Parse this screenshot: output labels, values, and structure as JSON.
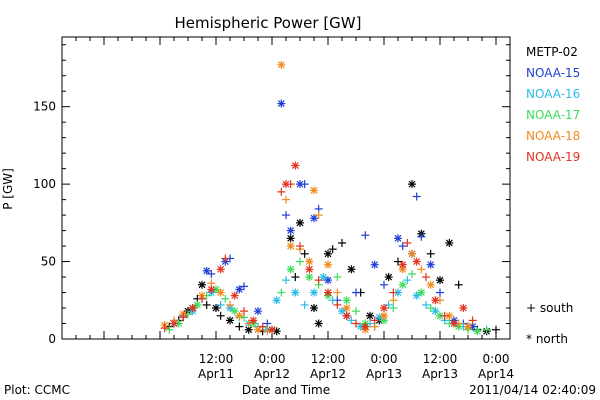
{
  "chart_data": {
    "type": "scatter",
    "title": "Hemispheric Power [GW]",
    "xlabel": "Date and Time",
    "ylabel": "P [GW]",
    "xlim": [
      -21,
      75
    ],
    "ylim": [
      0,
      195
    ],
    "x_unit": "hours from 0:00 Apr11",
    "y_ticks": [
      0,
      50,
      100,
      150
    ],
    "x_ticks": [
      {
        "x": 12,
        "time": "12:00",
        "date": "Apr11"
      },
      {
        "x": 24,
        "time": "0:00",
        "date": "Apr12"
      },
      {
        "x": 36,
        "time": "12:00",
        "date": "Apr12"
      },
      {
        "x": 48,
        "time": "0:00",
        "date": "Apr13"
      },
      {
        "x": 60,
        "time": "12:00",
        "date": "Apr13"
      },
      {
        "x": 72,
        "time": "0:00",
        "date": "Apr14"
      }
    ],
    "grid": false,
    "legend_position": "right",
    "marker_legend": [
      {
        "symbol": "+",
        "label": "south"
      },
      {
        "symbol": "*",
        "label": "north"
      }
    ],
    "series": [
      {
        "name": "METP-02",
        "color": "#000000",
        "points": [
          [
            2,
            8,
            "+"
          ],
          [
            4,
            12,
            "+"
          ],
          [
            6,
            18,
            "*"
          ],
          [
            8,
            26,
            "+"
          ],
          [
            9,
            35,
            "*"
          ],
          [
            10,
            22,
            "+"
          ],
          [
            12,
            20,
            "*"
          ],
          [
            13,
            15,
            "+"
          ],
          [
            15,
            12,
            "*"
          ],
          [
            17,
            8,
            "+"
          ],
          [
            19,
            6,
            "*"
          ],
          [
            22,
            5,
            "+"
          ],
          [
            25,
            5,
            "*"
          ],
          [
            28,
            65,
            "*"
          ],
          [
            29,
            40,
            "+"
          ],
          [
            30,
            75,
            "*"
          ],
          [
            31,
            55,
            "+"
          ],
          [
            33,
            20,
            "*"
          ],
          [
            34,
            10,
            "*"
          ],
          [
            36,
            55,
            "*"
          ],
          [
            37,
            58,
            "+"
          ],
          [
            39,
            62,
            "+"
          ],
          [
            41,
            45,
            "*"
          ],
          [
            43,
            30,
            "+"
          ],
          [
            45,
            15,
            "*"
          ],
          [
            47,
            12,
            "*"
          ],
          [
            49,
            40,
            "*"
          ],
          [
            51,
            50,
            "+"
          ],
          [
            54,
            100,
            "*"
          ],
          [
            56,
            68,
            "*"
          ],
          [
            58,
            55,
            "+"
          ],
          [
            60,
            38,
            "*"
          ],
          [
            62,
            62,
            "*"
          ],
          [
            64,
            35,
            "+"
          ],
          [
            66,
            8,
            "*"
          ],
          [
            68,
            6,
            "+"
          ],
          [
            70,
            5,
            "*"
          ],
          [
            72,
            6,
            "+"
          ]
        ]
      },
      {
        "name": "NOAA-15",
        "color": "#1f3fd6",
        "points": [
          [
            5,
            15,
            "+"
          ],
          [
            7,
            20,
            "*"
          ],
          [
            10,
            44,
            "*"
          ],
          [
            11,
            42,
            "+"
          ],
          [
            14,
            50,
            "*"
          ],
          [
            15,
            52,
            "+"
          ],
          [
            17,
            32,
            "*"
          ],
          [
            18,
            34,
            "+"
          ],
          [
            21,
            18,
            "*"
          ],
          [
            23,
            10,
            "+"
          ],
          [
            26,
            152,
            "*"
          ],
          [
            27,
            80,
            "+"
          ],
          [
            28,
            70,
            "*"
          ],
          [
            30,
            100,
            "*"
          ],
          [
            31,
            100,
            "+"
          ],
          [
            33,
            78,
            "*"
          ],
          [
            34,
            84,
            "+"
          ],
          [
            36,
            38,
            "*"
          ],
          [
            38,
            25,
            "+"
          ],
          [
            40,
            15,
            "*"
          ],
          [
            42,
            30,
            "+"
          ],
          [
            44,
            67,
            "+"
          ],
          [
            46,
            48,
            "*"
          ],
          [
            48,
            35,
            "+"
          ],
          [
            51,
            65,
            "*"
          ],
          [
            52,
            60,
            "+"
          ],
          [
            54,
            55,
            "*"
          ],
          [
            55,
            92,
            "+"
          ],
          [
            56,
            66,
            "+"
          ],
          [
            58,
            48,
            "*"
          ],
          [
            60,
            30,
            "+"
          ],
          [
            63,
            12,
            "*"
          ],
          [
            65,
            10,
            "+"
          ],
          [
            67,
            8,
            "*"
          ]
        ]
      },
      {
        "name": "NOAA-16",
        "color": "#29bde8",
        "points": [
          [
            3,
            10,
            "*"
          ],
          [
            5,
            14,
            "+"
          ],
          [
            7,
            18,
            "*"
          ],
          [
            9,
            26,
            "+"
          ],
          [
            11,
            30,
            "*"
          ],
          [
            13,
            22,
            "+"
          ],
          [
            15,
            20,
            "*"
          ],
          [
            17,
            14,
            "+"
          ],
          [
            19,
            10,
            "*"
          ],
          [
            21,
            8,
            "+"
          ],
          [
            23,
            6,
            "*"
          ],
          [
            25,
            25,
            "*"
          ],
          [
            27,
            38,
            "+"
          ],
          [
            29,
            30,
            "*"
          ],
          [
            31,
            22,
            "+"
          ],
          [
            33,
            30,
            "*"
          ],
          [
            35,
            40,
            "*"
          ],
          [
            37,
            25,
            "+"
          ],
          [
            39,
            18,
            "*"
          ],
          [
            41,
            12,
            "+"
          ],
          [
            43,
            8,
            "*"
          ],
          [
            45,
            10,
            "+"
          ],
          [
            47,
            14,
            "*"
          ],
          [
            49,
            22,
            "+"
          ],
          [
            51,
            30,
            "*"
          ],
          [
            53,
            38,
            "+"
          ],
          [
            55,
            28,
            "*"
          ],
          [
            57,
            22,
            "+"
          ],
          [
            59,
            18,
            "*"
          ],
          [
            61,
            12,
            "+"
          ],
          [
            63,
            10,
            "*"
          ],
          [
            65,
            8,
            "+"
          ]
        ]
      },
      {
        "name": "NOAA-17",
        "color": "#3ddc5c",
        "points": [
          [
            2,
            6,
            "+"
          ],
          [
            4,
            10,
            "*"
          ],
          [
            6,
            16,
            "+"
          ],
          [
            8,
            22,
            "*"
          ],
          [
            10,
            28,
            "+"
          ],
          [
            12,
            32,
            "*"
          ],
          [
            14,
            26,
            "+"
          ],
          [
            16,
            18,
            "*"
          ],
          [
            18,
            14,
            "+"
          ],
          [
            20,
            10,
            "*"
          ],
          [
            22,
            8,
            "+"
          ],
          [
            24,
            6,
            "*"
          ],
          [
            26,
            30,
            "+"
          ],
          [
            28,
            45,
            "*"
          ],
          [
            30,
            50,
            "+"
          ],
          [
            32,
            40,
            "*"
          ],
          [
            34,
            35,
            "+"
          ],
          [
            36,
            28,
            "*"
          ],
          [
            38,
            40,
            "+"
          ],
          [
            40,
            25,
            "*"
          ],
          [
            42,
            18,
            "+"
          ],
          [
            44,
            10,
            "*"
          ],
          [
            46,
            8,
            "+"
          ],
          [
            48,
            12,
            "*"
          ],
          [
            50,
            20,
            "+"
          ],
          [
            52,
            35,
            "*"
          ],
          [
            54,
            42,
            "+"
          ],
          [
            56,
            30,
            "*"
          ],
          [
            58,
            20,
            "+"
          ],
          [
            60,
            15,
            "*"
          ],
          [
            62,
            10,
            "+"
          ],
          [
            64,
            8,
            "*"
          ],
          [
            66,
            6,
            "+"
          ],
          [
            68,
            5,
            "*"
          ],
          [
            70,
            6,
            "+"
          ]
        ]
      },
      {
        "name": "NOAA-18",
        "color": "#f08a1c",
        "points": [
          [
            1,
            9,
            "*"
          ],
          [
            3,
            12,
            "+"
          ],
          [
            5,
            16,
            "*"
          ],
          [
            7,
            20,
            "+"
          ],
          [
            9,
            28,
            "*"
          ],
          [
            11,
            36,
            "+"
          ],
          [
            13,
            30,
            "*"
          ],
          [
            15,
            22,
            "+"
          ],
          [
            17,
            15,
            "*"
          ],
          [
            19,
            10,
            "+"
          ],
          [
            21,
            6,
            "*"
          ],
          [
            23,
            5,
            "+"
          ],
          [
            26,
            177,
            "*"
          ],
          [
            27,
            90,
            "+"
          ],
          [
            28,
            60,
            "*"
          ],
          [
            30,
            58,
            "+"
          ],
          [
            32,
            50,
            "*"
          ],
          [
            33,
            96,
            "*"
          ],
          [
            34,
            80,
            "+"
          ],
          [
            36,
            48,
            "*"
          ],
          [
            38,
            30,
            "+"
          ],
          [
            40,
            20,
            "*"
          ],
          [
            42,
            10,
            "+"
          ],
          [
            44,
            6,
            "*"
          ],
          [
            46,
            8,
            "+"
          ],
          [
            48,
            15,
            "*"
          ],
          [
            50,
            25,
            "+"
          ],
          [
            52,
            45,
            "*"
          ],
          [
            54,
            55,
            "*"
          ],
          [
            56,
            45,
            "+"
          ],
          [
            58,
            35,
            "*"
          ],
          [
            60,
            25,
            "+"
          ],
          [
            62,
            15,
            "*"
          ],
          [
            64,
            10,
            "+"
          ],
          [
            66,
            8,
            "*"
          ]
        ]
      },
      {
        "name": "NOAA-19",
        "color": "#e2321e",
        "points": [
          [
            1,
            7,
            "+"
          ],
          [
            3,
            10,
            "*"
          ],
          [
            5,
            14,
            "+"
          ],
          [
            7,
            20,
            "*"
          ],
          [
            9,
            26,
            "+"
          ],
          [
            11,
            32,
            "*"
          ],
          [
            13,
            45,
            "*"
          ],
          [
            14,
            52,
            "+"
          ],
          [
            16,
            28,
            "*"
          ],
          [
            18,
            18,
            "+"
          ],
          [
            20,
            12,
            "*"
          ],
          [
            22,
            8,
            "+"
          ],
          [
            24,
            6,
            "*"
          ],
          [
            26,
            95,
            "+"
          ],
          [
            27,
            100,
            "*"
          ],
          [
            28,
            100,
            "+"
          ],
          [
            29,
            112,
            "*"
          ],
          [
            30,
            60,
            "+"
          ],
          [
            32,
            45,
            "*"
          ],
          [
            34,
            38,
            "+"
          ],
          [
            36,
            30,
            "*"
          ],
          [
            38,
            22,
            "+"
          ],
          [
            40,
            15,
            "*"
          ],
          [
            42,
            10,
            "+"
          ],
          [
            44,
            8,
            "*"
          ],
          [
            46,
            12,
            "+"
          ],
          [
            48,
            20,
            "*"
          ],
          [
            50,
            30,
            "+"
          ],
          [
            52,
            48,
            "*"
          ],
          [
            53,
            62,
            "+"
          ],
          [
            55,
            50,
            "*"
          ],
          [
            57,
            40,
            "+"
          ],
          [
            59,
            25,
            "*"
          ],
          [
            61,
            15,
            "+"
          ],
          [
            63,
            10,
            "*"
          ],
          [
            65,
            20,
            "*"
          ],
          [
            67,
            12,
            "+"
          ]
        ]
      }
    ]
  },
  "footer": {
    "plot_label": "Plot: CCMC",
    "timestamp": "2011/04/14 02:40:09"
  }
}
